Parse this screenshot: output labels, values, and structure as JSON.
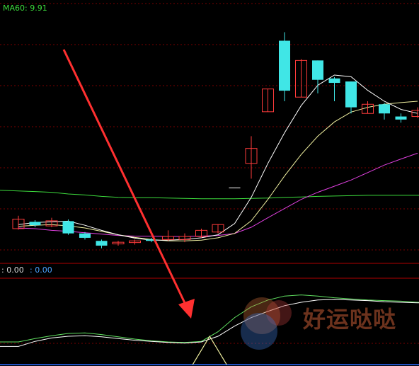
{
  "labels": {
    "ma60": "MA60: 9.91",
    "indicator_value_1": ": 0.00",
    "indicator_value_2": ": 0.00"
  },
  "watermark": {
    "text": "好运哒哒"
  },
  "colors": {
    "background": "#000000",
    "grid": "#7a0000",
    "up_candle": "#ff3b3b",
    "down_candle": "#40e6e6",
    "ma_fast": "#ffffff",
    "ma_mid": "#f0f0a0",
    "ma_slow": "#e040e0",
    "ma60": "#3ddc3d",
    "arrow": "#ff3030",
    "indicator_white": "#ffffff",
    "indicator_green": "#60e060",
    "indicator_yellow": "#f0f0a0"
  },
  "chart_data": {
    "type": "candlestick",
    "candles": [
      {
        "o": 8.98,
        "c": 9.26,
        "h": 9.36,
        "l": 8.95
      },
      {
        "o": 9.18,
        "c": 9.08,
        "h": 9.23,
        "l": 9.02
      },
      {
        "o": 9.06,
        "c": 9.21,
        "h": 9.3,
        "l": 9.02
      },
      {
        "o": 9.2,
        "c": 8.84,
        "h": 9.25,
        "l": 8.8
      },
      {
        "o": 8.84,
        "c": 8.71,
        "h": 8.88,
        "l": 8.66
      },
      {
        "o": 8.62,
        "c": 8.48,
        "h": 8.66,
        "l": 8.4
      },
      {
        "o": 8.53,
        "c": 8.58,
        "h": 8.62,
        "l": 8.48
      },
      {
        "o": 8.57,
        "c": 8.62,
        "h": 8.66,
        "l": 8.51
      },
      {
        "o": 8.66,
        "c": 8.62,
        "h": 8.71,
        "l": 8.58
      },
      {
        "o": 8.66,
        "c": 8.75,
        "h": 8.93,
        "l": 8.62
      },
      {
        "o": 8.66,
        "c": 8.75,
        "h": 8.84,
        "l": 8.58
      },
      {
        "o": 8.75,
        "c": 8.93,
        "h": 8.98,
        "l": 8.71
      },
      {
        "o": 8.88,
        "c": 9.1,
        "h": 9.1,
        "l": 8.84
      },
      {
        "o": 10.18,
        "c": 10.18,
        "h": 10.18,
        "l": 10.18
      },
      {
        "o": 10.9,
        "c": 11.34,
        "h": 11.7,
        "l": 10.45
      },
      {
        "o": 12.42,
        "c": 13.09,
        "h": 13.09,
        "l": 12.42
      },
      {
        "o": 14.51,
        "c": 13.04,
        "h": 14.76,
        "l": 12.73
      },
      {
        "o": 12.85,
        "c": 13.93,
        "h": 13.97,
        "l": 12.85
      },
      {
        "o": 13.93,
        "c": 13.36,
        "h": 13.93,
        "l": 12.96
      },
      {
        "o": 13.4,
        "c": 13.27,
        "h": 13.44,
        "l": 12.73
      },
      {
        "o": 13.31,
        "c": 12.55,
        "h": 13.31,
        "l": 12.37
      },
      {
        "o": 12.37,
        "c": 12.64,
        "h": 12.73,
        "l": 12.37
      },
      {
        "o": 12.64,
        "c": 12.37,
        "h": 12.68,
        "l": 12.19
      },
      {
        "o": 12.28,
        "c": 12.19,
        "h": 12.37,
        "l": 12.1
      },
      {
        "o": 12.28,
        "c": 12.46,
        "h": 12.55,
        "l": 12.24
      }
    ],
    "ma_fast": [
      9.1,
      9.16,
      9.18,
      9.2,
      9.08,
      8.93,
      8.8,
      8.7,
      8.64,
      8.64,
      8.66,
      8.71,
      8.8,
      9.13,
      9.9,
      10.9,
      11.8,
      12.6,
      13.2,
      13.5,
      13.45,
      13.05,
      12.73,
      12.49,
      12.37
    ],
    "ma_mid": [
      9.05,
      9.08,
      9.1,
      9.06,
      9.0,
      8.9,
      8.8,
      8.72,
      8.66,
      8.62,
      8.62,
      8.64,
      8.71,
      8.84,
      9.21,
      9.84,
      10.53,
      11.16,
      11.7,
      12.12,
      12.41,
      12.55,
      12.64,
      12.69,
      12.73
    ],
    "ma_slow": [
      9.0,
      8.98,
      8.93,
      8.9,
      8.86,
      8.82,
      8.78,
      8.76,
      8.76,
      8.75,
      8.75,
      8.76,
      8.78,
      8.84,
      9.02,
      9.3,
      9.57,
      9.84,
      10.05,
      10.23,
      10.41,
      10.63,
      10.85,
      11.03,
      11.2
    ],
    "ma60": [
      10.09,
      10.07,
      10.05,
      10.0,
      9.97,
      9.93,
      9.9,
      9.89,
      9.89,
      9.88,
      9.87,
      9.86,
      9.86,
      9.86,
      9.87,
      9.88,
      9.9,
      9.91,
      9.93,
      9.94,
      9.95,
      9.96,
      9.96,
      9.96,
      9.96
    ],
    "ylim": [
      8.0,
      15.5
    ],
    "indicator": {
      "white": [
        0.02,
        0.11,
        0.17,
        0.2,
        0.21,
        0.19,
        0.16,
        0.13,
        0.11,
        0.09,
        0.08,
        0.1,
        0.2,
        0.38,
        0.53,
        0.64,
        0.74,
        0.8,
        0.84,
        0.85,
        0.84,
        0.83,
        0.81,
        0.8,
        0.79
      ],
      "green": [
        0.1,
        0.16,
        0.21,
        0.25,
        0.26,
        0.23,
        0.19,
        0.15,
        0.12,
        0.1,
        0.09,
        0.11,
        0.28,
        0.53,
        0.72,
        0.84,
        0.91,
        0.93,
        0.91,
        0.88,
        0.86,
        0.84,
        0.83,
        0.82,
        0.8
      ],
      "yellow_peak_index": 11.5,
      "ylim": [
        -0.3,
        1.2
      ]
    }
  }
}
